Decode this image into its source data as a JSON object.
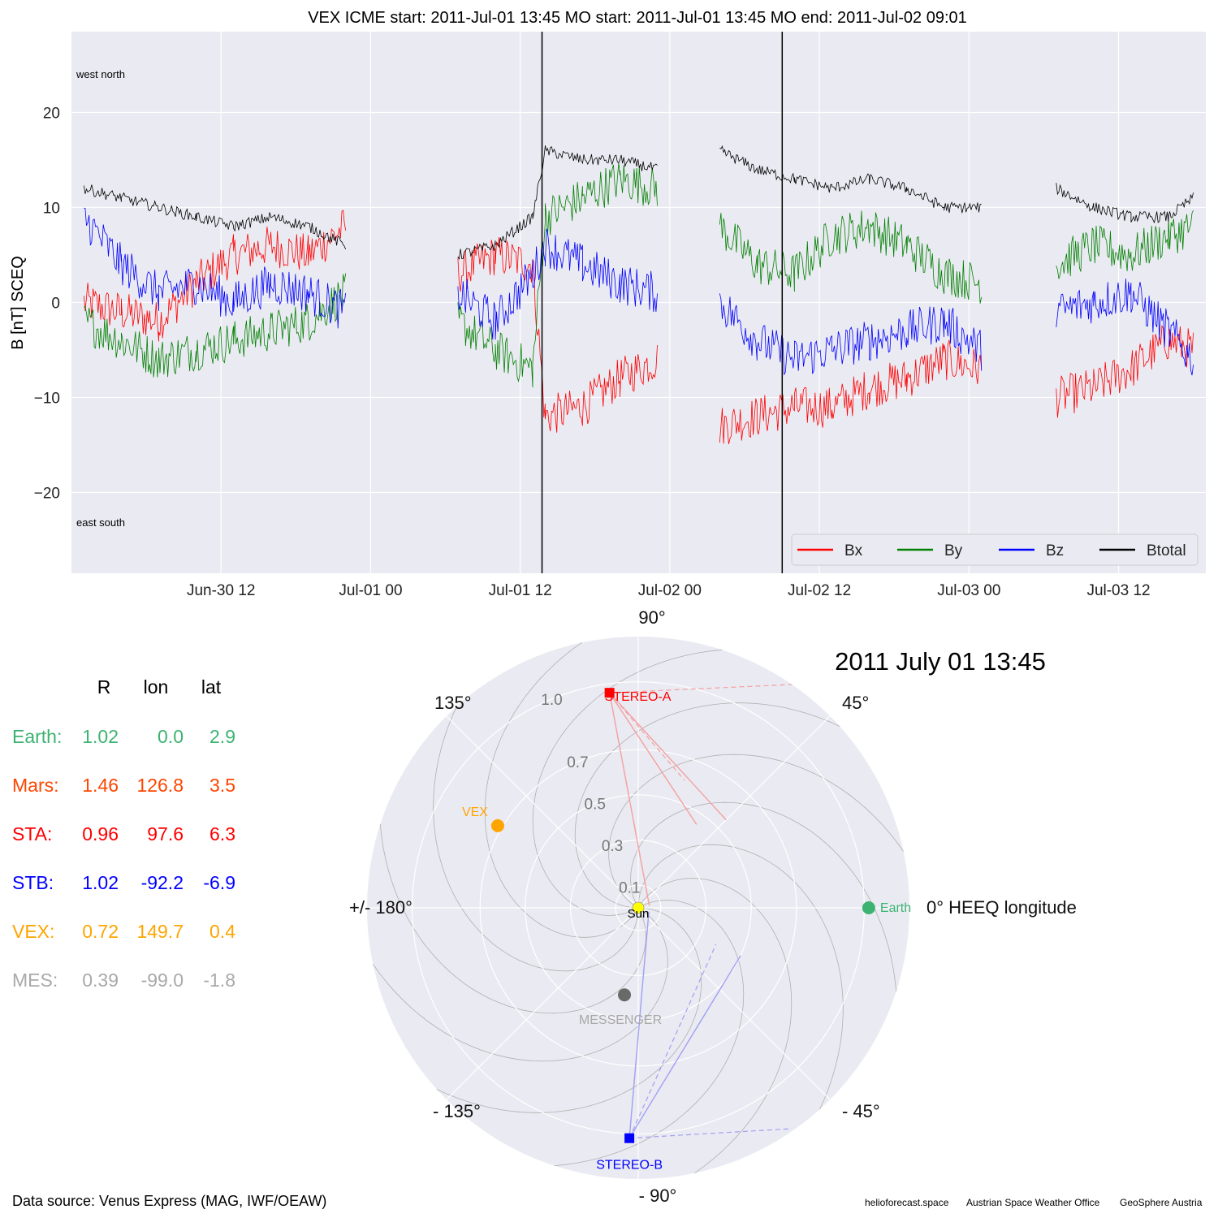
{
  "chart_data": [
    {
      "type": "line",
      "title": "VEX    ICME start: 2011-Jul-01 13:45   MO start: 2011-Jul-01 13:45   MO end: 2011-Jul-02 09:01",
      "ylabel": "B [nT] SCEQ",
      "xlabel": "",
      "ylim": [
        -28.5,
        28.5
      ],
      "xlim": [
        "2011-06-30 00:00",
        "2011-07-03 19:00"
      ],
      "yticks": [
        -20,
        -10,
        0,
        10,
        20
      ],
      "xticks": [
        "Jun-30 12",
        "Jul-01 00",
        "Jul-01 12",
        "Jul-02 00",
        "Jul-02 12",
        "Jul-03 00",
        "Jul-03 12"
      ],
      "grid": true,
      "legend_position": "bottom-right",
      "corner_labels": {
        "top_left": "west    north",
        "bottom_left": "east    south"
      },
      "event_lines": [
        {
          "label": "ICME start / MO start",
          "time": "2011-07-01 13:45"
        },
        {
          "label": "MO end",
          "time": "2011-07-02 09:01"
        }
      ],
      "x": [
        "2011-06-30 01:00",
        "2011-06-30 04:00",
        "2011-06-30 07:00",
        "2011-06-30 10:00",
        "2011-06-30 13:00",
        "2011-06-30 16:00",
        "2011-06-30 19:00",
        "2011-06-30 22:00",
        "2011-07-01 01:00",
        "2011-07-01 04:00",
        "2011-07-01 07:00",
        "2011-07-01 10:00",
        "2011-07-01 13:00",
        "2011-07-01 14:00",
        "2011-07-01 17:00",
        "2011-07-01 20:00",
        "2011-07-01 23:00",
        "2011-07-02 01:00",
        "2011-07-02 04:00",
        "2011-07-02 07:00",
        "2011-07-02 10:00",
        "2011-07-02 13:00",
        "2011-07-02 16:00",
        "2011-07-02 19:00",
        "2011-07-02 22:00",
        "2011-07-03 01:00",
        "2011-07-03 04:00",
        "2011-07-03 07:00",
        "2011-07-03 10:00",
        "2011-07-03 13:00",
        "2011-07-03 16:00",
        "2011-07-03 18:00"
      ],
      "series": [
        {
          "name": "Bx",
          "color": "#ff0000",
          "values": [
            0,
            -1,
            -2,
            2,
            5,
            6,
            5,
            8,
            null,
            null,
            3,
            5,
            4,
            -12,
            -11,
            -8,
            -6,
            null,
            -13,
            -12,
            -11,
            -11,
            -9,
            -8,
            -6,
            -7,
            null,
            -10,
            -9,
            -7,
            -4,
            -5
          ]
        },
        {
          "name": "By",
          "color": "#008000",
          "values": [
            -2,
            -4,
            -6,
            -5,
            -4,
            -3,
            -2,
            1,
            null,
            null,
            -2,
            -5,
            -7,
            9,
            11,
            13,
            12,
            null,
            8,
            4,
            3,
            7,
            8,
            6,
            3,
            2,
            null,
            4,
            6,
            5,
            7,
            8
          ]
        },
        {
          "name": "Bz",
          "color": "#0000ff",
          "values": [
            9,
            4,
            1,
            2,
            0,
            2,
            1,
            -1,
            null,
            null,
            1,
            -2,
            3,
            6,
            4,
            2,
            1,
            null,
            0,
            -4,
            -6,
            -5,
            -4,
            -3,
            -2,
            -5,
            null,
            -1,
            0,
            1,
            -3,
            -6
          ]
        },
        {
          "name": "Btotal",
          "color": "#000000",
          "values": [
            12,
            11,
            10,
            9,
            8,
            9,
            8,
            6,
            null,
            null,
            5,
            6,
            9,
            16,
            15,
            15,
            14,
            null,
            16,
            14,
            13,
            12,
            13,
            12,
            10,
            10,
            null,
            12,
            10,
            9,
            9,
            11
          ]
        }
      ]
    },
    {
      "type": "scatter",
      "subtype": "polar",
      "title": "2011 July 01  13:45",
      "angle_labels": {
        "a0": "0° HEEQ longitude",
        "a45": "45°",
        "a90": "90°",
        "a135": "135°",
        "a180": "+/- 180°",
        "am135": "- 135°",
        "am90": "- 90°",
        "am45": "- 45°"
      },
      "radial_ticks": [
        0.1,
        0.3,
        0.5,
        0.7,
        1.0
      ],
      "radial_tick_labels": [
        "0.1",
        "0.3",
        "0.5",
        "0.7",
        "1.0"
      ],
      "rlim": [
        0,
        1.2
      ],
      "points": [
        {
          "name": "Sun",
          "r": 0.0,
          "lon": 0.0,
          "color": "#ffff00",
          "marker": "circle",
          "label_color": "#000000"
        },
        {
          "name": "Earth",
          "r": 1.02,
          "lon": 0.0,
          "color": "#3cb371",
          "marker": "circle",
          "label_color": "#3cb371"
        },
        {
          "name": "STEREO-A",
          "r": 0.96,
          "lon": 97.6,
          "color": "#ff0000",
          "marker": "square",
          "label_color": "#ff0000"
        },
        {
          "name": "STEREO-B",
          "r": 1.02,
          "lon": -92.2,
          "color": "#0000ff",
          "marker": "square",
          "label_color": "#0000ff"
        },
        {
          "name": "VEX",
          "r": 0.72,
          "lon": 149.7,
          "color": "#ffa500",
          "marker": "circle",
          "label_color": "#ffa500"
        },
        {
          "name": "MESSENGER",
          "r": 0.39,
          "lon": -99.0,
          "color": "#696969",
          "marker": "circle",
          "label_color": "#a9a9a9"
        }
      ]
    }
  ],
  "position_table": {
    "headers": [
      "R",
      "lon",
      "lat"
    ],
    "rows": [
      {
        "label": "Earth:",
        "r": "1.02",
        "lon": "0.0",
        "lat": "2.9",
        "color": "#3cb371"
      },
      {
        "label": "Mars:",
        "r": "1.46",
        "lon": "126.8",
        "lat": "3.5",
        "color": "#ff4500"
      },
      {
        "label": "STA:",
        "r": "0.96",
        "lon": "97.6",
        "lat": "6.3",
        "color": "#ff0000"
      },
      {
        "label": "STB:",
        "r": "1.02",
        "lon": "-92.2",
        "lat": "-6.9",
        "color": "#0000ff"
      },
      {
        "label": "VEX:",
        "r": "0.72",
        "lon": "149.7",
        "lat": "0.4",
        "color": "#ffa500"
      },
      {
        "label": "MES:",
        "r": "0.39",
        "lon": "-99.0",
        "lat": "-1.8",
        "color": "#a9a9a9"
      }
    ]
  },
  "footer": {
    "source": "Data source: Venus Express (MAG, IWF/OEAW)",
    "credit1": "helioforecast.space",
    "credit2": "Austrian Space Weather Office",
    "credit3": "GeoSphere Austria"
  },
  "colors": {
    "panel_bg": "#eaeaf2",
    "grid": "#ffffff"
  }
}
